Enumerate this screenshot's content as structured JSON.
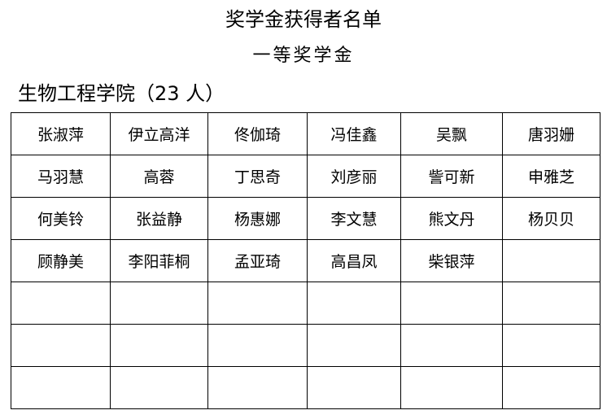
{
  "title": "奖学金获得者名单",
  "subtitle": "一等奖学金",
  "section": "生物工程学院（23 人）",
  "rows": [
    [
      "张淑萍",
      "伊立高洋",
      "佟伽琦",
      "冯佳鑫",
      "吴飘",
      "唐羽姗"
    ],
    [
      "马羽慧",
      "高蓉",
      "丁思奇",
      "刘彦丽",
      "訾可新",
      "申雅芝"
    ],
    [
      "何美铃",
      "张益静",
      "杨惠娜",
      "李文慧",
      "熊文丹",
      "杨贝贝"
    ],
    [
      "顾静美",
      "李阳菲桐",
      "孟亚琦",
      "高昌凤",
      "柴银萍",
      ""
    ],
    [
      "",
      "",
      "",
      "",
      "",
      ""
    ],
    [
      "",
      "",
      "",
      "",
      "",
      ""
    ],
    [
      "",
      "",
      "",
      "",
      "",
      ""
    ]
  ]
}
